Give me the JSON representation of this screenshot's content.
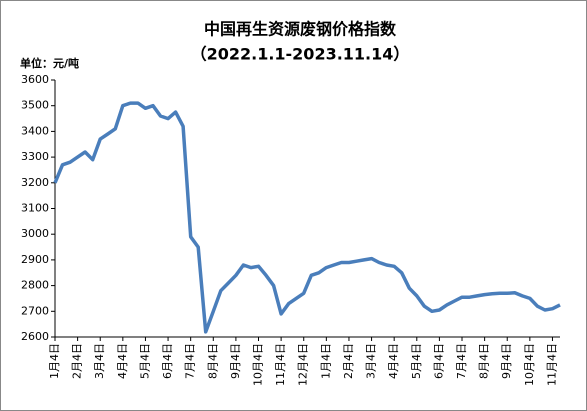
{
  "chart_data": {
    "type": "line",
    "title": "中国再生资源废钢价格指数",
    "subtitle": "（2022.1.1-2023.11.14）",
    "y_label": "单位：元/吨",
    "categories": [
      "1月4日",
      null,
      null,
      "2月4日",
      null,
      null,
      "3月4日",
      null,
      null,
      "4月4日",
      null,
      null,
      "5月4日",
      null,
      null,
      "6月4日",
      null,
      null,
      "7月4日",
      null,
      null,
      "8月4日",
      null,
      null,
      "9月4日",
      null,
      null,
      "10月4日",
      null,
      null,
      "11月4日",
      null,
      null,
      "12月4日",
      null,
      null,
      "1月4日",
      null,
      null,
      "2月4日",
      null,
      null,
      "3月4日",
      null,
      null,
      "4月4日",
      null,
      null,
      "5月4日",
      null,
      null,
      "6月4日",
      null,
      null,
      "7月4日",
      null,
      null,
      "8月4日",
      null,
      null,
      "9月4日",
      null,
      null,
      "10月4日",
      null,
      null,
      "11月4日",
      null
    ],
    "series": [
      {
        "name": "废钢价格指数",
        "color": "#4a7ebb",
        "values": [
          3200,
          3270,
          3280,
          3300,
          3320,
          3290,
          3370,
          3390,
          3410,
          3500,
          3510,
          3510,
          3490,
          3500,
          3460,
          3450,
          3475,
          3420,
          2990,
          2950,
          2620,
          2700,
          2780,
          2810,
          2840,
          2880,
          2870,
          2875,
          2840,
          2800,
          2690,
          2730,
          2750,
          2770,
          2840,
          2850,
          2870,
          2880,
          2890,
          2890,
          2895,
          2900,
          2905,
          2890,
          2880,
          2875,
          2850,
          2790,
          2760,
          2720,
          2700,
          2705,
          2725,
          2740,
          2755,
          2755,
          2760,
          2765,
          2768,
          2770,
          2770,
          2772,
          2760,
          2750,
          2720,
          2705,
          2710,
          2725
        ]
      }
    ],
    "ylim": [
      2600,
      3600
    ],
    "yticks": [
      2600,
      2700,
      2800,
      2900,
      3000,
      3100,
      3200,
      3300,
      3400,
      3500,
      3600
    ]
  }
}
